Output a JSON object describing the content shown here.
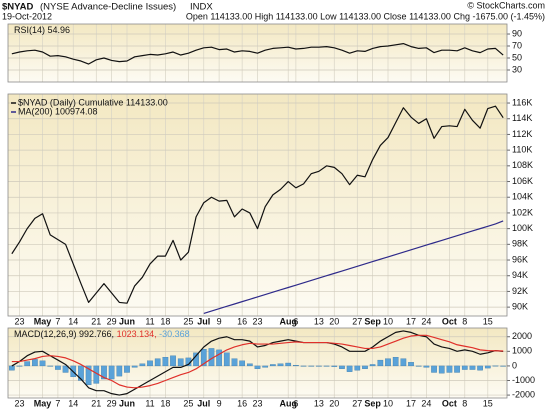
{
  "header": {
    "symbol": "$NYAD",
    "name": "(NYSE Advance-Decline Issues)",
    "exchange": "INDX",
    "date": "19-Oct-2012",
    "quote": "Open 114133.00 High 114133.00 Low 114133.00 Close 114133.00 Chg -1675.00 (-1.45%)",
    "credit": "© StockCharts.com"
  },
  "chart_data": [
    {
      "type": "line",
      "legend": "inline",
      "ylim": [
        10,
        106.7
      ],
      "yticks": [
        30,
        50,
        70,
        90
      ],
      "grid": true,
      "series": [
        {
          "name": "RSI(14) 54.96",
          "color": "#111111",
          "values": [
            57,
            60,
            62,
            63,
            60,
            53,
            54,
            52,
            48,
            45,
            40,
            47,
            50,
            46,
            44,
            45,
            52,
            54,
            56,
            55,
            57,
            60,
            55,
            58,
            63,
            67,
            68,
            64,
            65,
            60,
            62,
            61,
            58,
            63,
            66,
            67,
            68,
            65,
            66,
            68,
            68,
            69,
            67,
            63,
            58,
            62,
            61,
            66,
            69,
            70,
            72,
            74,
            69,
            66,
            67,
            59,
            63,
            63,
            62,
            67,
            62,
            59,
            65,
            66,
            54.96
          ]
        }
      ]
    },
    {
      "type": "line",
      "legend": "upper left",
      "ylim": [
        88870,
        117150
      ],
      "grid": true,
      "yticks": [
        {
          "value": 90000,
          "label": "90K"
        },
        {
          "value": 92000,
          "label": "92K"
        },
        {
          "value": 94000,
          "label": "94K"
        },
        {
          "value": 96000,
          "label": "96K"
        },
        {
          "value": 98000,
          "label": "98K"
        },
        {
          "value": 100000,
          "label": "100K"
        },
        {
          "value": 102000,
          "label": "102K"
        },
        {
          "value": 104000,
          "label": "104K"
        },
        {
          "value": 106000,
          "label": "106K"
        },
        {
          "value": 108000,
          "label": "108K"
        },
        {
          "value": 110000,
          "label": "110K"
        },
        {
          "value": 112000,
          "label": "112K"
        },
        {
          "value": 114000,
          "label": "114K"
        },
        {
          "value": 116000,
          "label": "116K"
        }
      ],
      "categories": [
        null,
        "23",
        null,
        null,
        "May",
        null,
        "7",
        null,
        "14",
        null,
        null,
        "21",
        null,
        "29",
        null,
        "Jun",
        null,
        null,
        "11",
        null,
        "18",
        null,
        null,
        "25",
        null,
        "Jul",
        null,
        "9",
        null,
        null,
        "16",
        null,
        "23",
        null,
        null,
        null,
        "Aug",
        "6",
        null,
        null,
        "13",
        null,
        "20",
        null,
        null,
        "27",
        null,
        "Sep",
        null,
        "10",
        null,
        null,
        "17",
        null,
        "24",
        null,
        null,
        "Oct",
        null,
        "8",
        null,
        null,
        "15",
        null,
        null
      ],
      "series": [
        {
          "name": "$NYAD (Daily) Cumulative 114133.00",
          "color": "#111111",
          "values": [
            96800,
            98300,
            100000,
            101300,
            101900,
            99200,
            98600,
            98000,
            95500,
            93000,
            90600,
            91800,
            93000,
            91800,
            90600,
            90500,
            92700,
            93800,
            95500,
            96500,
            96500,
            98500,
            96000,
            97000,
            101500,
            103300,
            104000,
            103500,
            103600,
            101500,
            102500,
            102000,
            100000,
            102800,
            104300,
            105000,
            106000,
            105200,
            105700,
            107000,
            107300,
            108000,
            107800,
            107000,
            105600,
            106800,
            106600,
            108800,
            110600,
            111600,
            113500,
            115400,
            114200,
            113400,
            114000,
            111500,
            113000,
            113100,
            113000,
            115200,
            113800,
            112800,
            115300,
            115600,
            114133
          ]
        },
        {
          "name": "MA(200) 100974.08",
          "color": "#2e2a8a",
          "values": [
            null,
            null,
            null,
            null,
            null,
            null,
            null,
            null,
            null,
            null,
            null,
            null,
            null,
            null,
            null,
            null,
            null,
            null,
            null,
            null,
            null,
            null,
            null,
            null,
            null,
            89200,
            89500,
            89800,
            90100,
            90400,
            90700,
            91000,
            91300,
            91600,
            91900,
            92200,
            92500,
            92800,
            93100,
            93400,
            93700,
            94000,
            94300,
            94600,
            94900,
            95200,
            95500,
            95800,
            96100,
            96400,
            96700,
            97000,
            97300,
            97600,
            97900,
            98200,
            98500,
            98800,
            99100,
            99400,
            99700,
            100000,
            100300,
            100600,
            100974.08
          ]
        }
      ]
    },
    {
      "type": "line",
      "legend": "inline",
      "ylim": [
        -2200,
        2600
      ],
      "yticks": [
        -2000,
        -1000,
        0,
        1000,
        2000
      ],
      "grid": true,
      "categories": [
        null,
        "23",
        null,
        null,
        "May",
        null,
        "7",
        null,
        "14",
        null,
        null,
        "21",
        null,
        "29",
        null,
        "Jun",
        null,
        null,
        "11",
        null,
        "18",
        null,
        null,
        "25",
        null,
        "Jul",
        null,
        "9",
        null,
        null,
        "16",
        null,
        "23",
        null,
        null,
        null,
        "Aug",
        "6",
        null,
        null,
        "13",
        null,
        "20",
        null,
        null,
        "27",
        null,
        "Sep",
        null,
        "10",
        null,
        null,
        "17",
        null,
        "24",
        null,
        null,
        "Oct",
        null,
        "8",
        null,
        null,
        "15",
        null,
        null
      ],
      "series": [
        {
          "name": "-30.368",
          "type": "bar",
          "color": "#5aa2d8",
          "values": [
            -300,
            0,
            300,
            450,
            350,
            0,
            -250,
            -450,
            -750,
            -1000,
            -1300,
            -1200,
            -900,
            -900,
            -700,
            -450,
            -100,
            150,
            350,
            500,
            600,
            700,
            500,
            550,
            900,
            1150,
            1200,
            1100,
            900,
            500,
            350,
            150,
            -200,
            -100,
            100,
            150,
            200,
            50,
            0,
            0,
            0,
            0,
            -50,
            -200,
            -400,
            -300,
            -200,
            100,
            400,
            500,
            600,
            500,
            250,
            0,
            -100,
            -450,
            -500,
            -450,
            -450,
            -250,
            -250,
            -300,
            -150,
            10,
            -30.368
          ]
        },
        {
          "name": "MACD(12,26,9) 992.766,",
          "color": "#111111",
          "values": [
            0,
            300,
            700,
            950,
            1000,
            700,
            400,
            100,
            -400,
            -900,
            -1500,
            -1700,
            -1700,
            -1900,
            -2000,
            -1900,
            -1600,
            -1300,
            -1000,
            -700,
            -400,
            -100,
            -100,
            100,
            700,
            1300,
            1700,
            1900,
            2000,
            1800,
            1800,
            1700,
            1300,
            1400,
            1600,
            1700,
            1800,
            1700,
            1600,
            1600,
            1600,
            1600,
            1500,
            1300,
            1000,
            1000,
            1000,
            1300,
            1700,
            2000,
            2300,
            2400,
            2300,
            2100,
            2000,
            1500,
            1300,
            1200,
            1000,
            1100,
            1000,
            800,
            900,
            1050,
            992.766
          ]
        },
        {
          "name": "1023.134,",
          "color": "#e0302a",
          "values": [
            300,
            300,
            400,
            500,
            650,
            700,
            650,
            550,
            350,
            100,
            -200,
            -500,
            -800,
            -1000,
            -1300,
            -1450,
            -1500,
            -1450,
            -1350,
            -1200,
            -1000,
            -800,
            -600,
            -450,
            -200,
            150,
            500,
            800,
            1100,
            1300,
            1450,
            1550,
            1500,
            1500,
            1500,
            1550,
            1600,
            1650,
            1600,
            1600,
            1600,
            1600,
            1550,
            1500,
            1400,
            1300,
            1200,
            1200,
            1300,
            1500,
            1700,
            1900,
            2050,
            2100,
            2100,
            1950,
            1800,
            1650,
            1450,
            1350,
            1250,
            1100,
            1050,
            1040,
            1023.134
          ]
        }
      ]
    }
  ]
}
